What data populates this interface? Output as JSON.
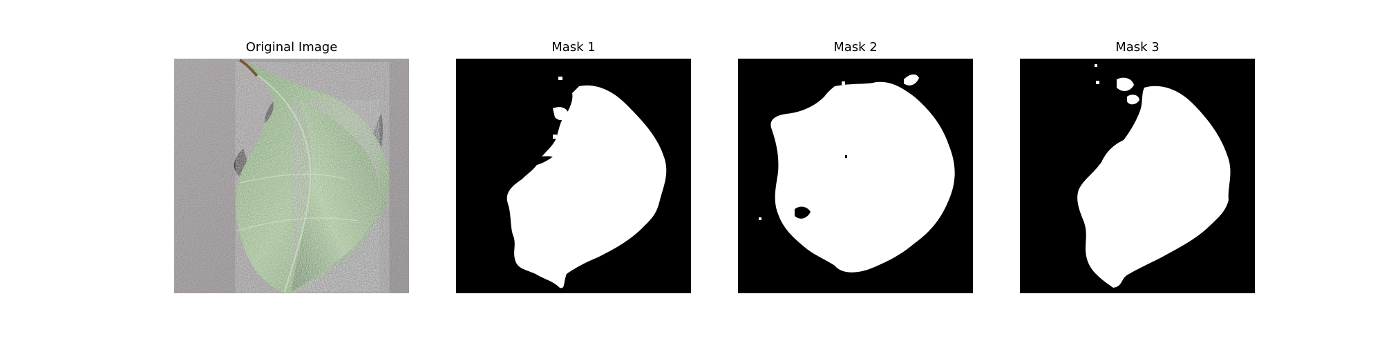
{
  "figure": {
    "panels": [
      {
        "title": "Original Image"
      },
      {
        "title": "Mask 1"
      },
      {
        "title": "Mask 2"
      },
      {
        "title": "Mask 3"
      }
    ]
  }
}
